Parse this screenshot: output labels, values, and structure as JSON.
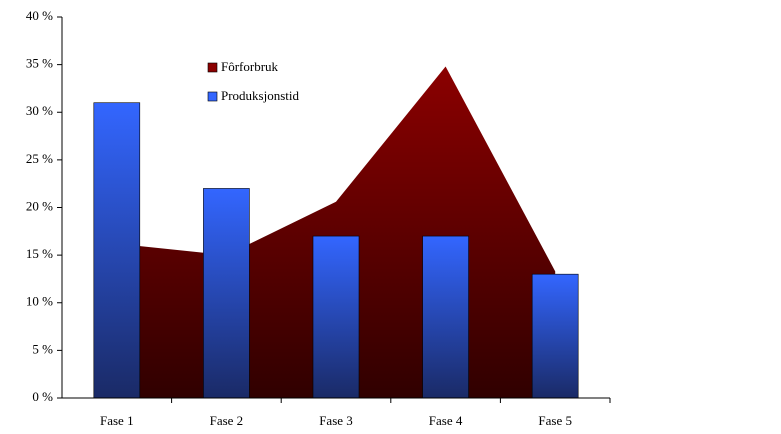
{
  "chart_data": {
    "type": "bar-area",
    "categories": [
      "Fase 1",
      "Fase 2",
      "Fase 3",
      "Fase 4",
      "Fase 5"
    ],
    "series": [
      {
        "name": "Fôrforbruk",
        "type": "area",
        "color": "#8b0000",
        "values": [
          16.2,
          15,
          20.6,
          34.8,
          13.3
        ]
      },
      {
        "name": "Produksjonstid",
        "type": "bar",
        "color": "#3366ff",
        "values": [
          31,
          22,
          17,
          17,
          13
        ]
      }
    ],
    "ylim": [
      0,
      40
    ],
    "yticks": [
      {
        "value": 0,
        "label": "0 %"
      },
      {
        "value": 5,
        "label": "5 %"
      },
      {
        "value": 10,
        "label": "10 %"
      },
      {
        "value": 15,
        "label": "15 %"
      },
      {
        "value": 20,
        "label": "20 %"
      },
      {
        "value": 25,
        "label": "25 %"
      },
      {
        "value": 30,
        "label": "30 %"
      },
      {
        "value": 35,
        "label": "35 %"
      },
      {
        "value": 40,
        "label": "40 %"
      }
    ],
    "grid": false
  }
}
